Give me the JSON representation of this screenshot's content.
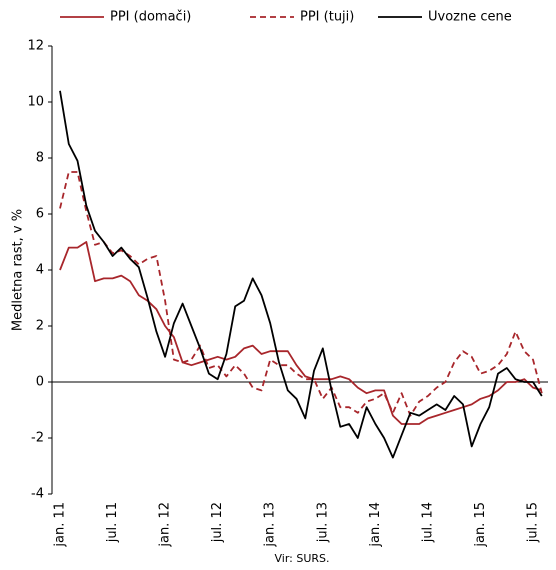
{
  "chart_data": {
    "type": "line",
    "ylabel": "Medletna rast, v %",
    "source": "Vir: SURS.",
    "categories": [
      "jan. 11",
      null,
      null,
      null,
      null,
      null,
      "jul. 11",
      null,
      null,
      null,
      null,
      null,
      "jan. 12",
      null,
      null,
      null,
      null,
      null,
      "jul. 12",
      null,
      null,
      null,
      null,
      null,
      "jan. 13",
      null,
      null,
      null,
      null,
      null,
      "jul. 13",
      null,
      null,
      null,
      null,
      null,
      "jan. 14",
      null,
      null,
      null,
      null,
      null,
      "jul. 14",
      null,
      null,
      null,
      null,
      null,
      "jan. 15",
      null,
      null,
      null,
      null,
      null,
      "jul. 15",
      null
    ],
    "series": [
      {
        "name": "PPI (domači)",
        "color": "#a8262b",
        "dashed": false,
        "values": [
          4.0,
          4.8,
          4.8,
          5.0,
          3.6,
          3.7,
          3.7,
          3.8,
          3.6,
          3.1,
          2.9,
          2.6,
          2.0,
          1.6,
          0.7,
          0.6,
          0.7,
          0.8,
          0.9,
          0.8,
          0.9,
          1.2,
          1.3,
          1.0,
          1.1,
          1.1,
          1.1,
          0.6,
          0.2,
          0.1,
          0.1,
          0.1,
          0.2,
          0.1,
          -0.2,
          -0.4,
          -0.3,
          -0.3,
          -1.2,
          -1.5,
          -1.5,
          -1.5,
          -1.3,
          -1.2,
          -1.1,
          -1.0,
          -0.9,
          -0.8,
          -0.6,
          -0.5,
          -0.3,
          0.0,
          0.0,
          0.1,
          -0.2,
          -0.3
        ]
      },
      {
        "name": "PPI (tuji)",
        "color": "#a8262b",
        "dashed": true,
        "values": [
          6.2,
          7.5,
          7.5,
          6.1,
          4.9,
          5.0,
          4.6,
          4.7,
          4.5,
          4.2,
          4.4,
          4.5,
          2.9,
          0.8,
          0.7,
          0.8,
          1.3,
          0.5,
          0.6,
          0.2,
          0.6,
          0.3,
          -0.2,
          -0.3,
          0.8,
          0.6,
          0.6,
          0.3,
          0.1,
          0.1,
          -0.6,
          -0.2,
          -0.9,
          -0.9,
          -1.1,
          -0.7,
          -0.6,
          -0.4,
          -1.1,
          -0.4,
          -1.2,
          -0.7,
          -0.5,
          -0.2,
          0.0,
          0.7,
          1.1,
          0.9,
          0.3,
          0.4,
          0.6,
          1.0,
          1.8,
          1.1,
          0.8,
          -0.4
        ]
      },
      {
        "name": "Uvozne cene",
        "color": "#000000",
        "dashed": false,
        "values": [
          10.4,
          8.5,
          7.9,
          6.3,
          5.4,
          5.0,
          4.5,
          4.8,
          4.4,
          4.1,
          3.0,
          1.8,
          0.9,
          2.1,
          2.8,
          2.0,
          1.2,
          0.3,
          0.1,
          1.0,
          2.7,
          2.9,
          3.7,
          3.1,
          2.1,
          0.7,
          -0.3,
          -0.6,
          -1.3,
          0.4,
          1.2,
          -0.3,
          -1.6,
          -1.5,
          -2.0,
          -0.9,
          -1.5,
          -2.0,
          -2.7,
          -1.9,
          -1.1,
          -1.2,
          -1.0,
          -0.8,
          -1.0,
          -0.5,
          -0.8,
          -2.3,
          -1.5,
          -0.9,
          0.3,
          0.5,
          0.1,
          0.0,
          0.0,
          -0.5
        ]
      }
    ],
    "ylim": [
      -4,
      12
    ],
    "yticks": [
      -4,
      -2,
      0,
      2,
      4,
      6,
      8,
      10,
      12
    ]
  }
}
